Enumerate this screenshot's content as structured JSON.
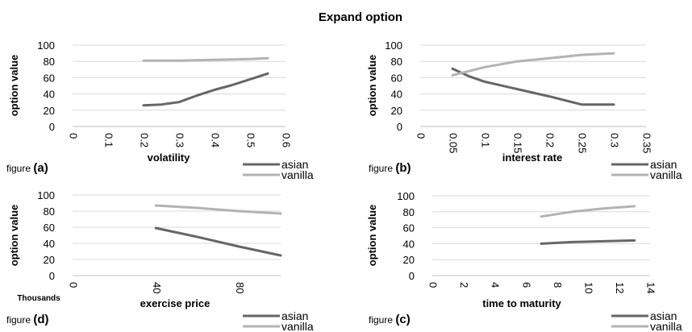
{
  "chart_data": [
    {
      "type": "line",
      "title": "Expand option",
      "panel_label": "figure",
      "panel_id": "(a)",
      "xlabel": "volatility",
      "ylabel": "option value",
      "xlim": [
        0,
        0.6
      ],
      "ylim": [
        0,
        100
      ],
      "x_ticks": [
        "0",
        "0.1",
        "0.2",
        "0.3",
        "0.4",
        "0.5",
        "0.6"
      ],
      "y_ticks": [
        "0",
        "20",
        "40",
        "60",
        "80",
        "100"
      ],
      "grid": true,
      "legend_position": "bottom-right",
      "series": [
        {
          "name": "asian",
          "color": "#666666",
          "x": [
            0.2,
            0.25,
            0.3,
            0.35,
            0.4,
            0.45,
            0.5,
            0.55
          ],
          "y": [
            26,
            27,
            30,
            38,
            45,
            51,
            58,
            65
          ]
        },
        {
          "name": "vanilla",
          "color": "#b3b3b3",
          "x": [
            0.2,
            0.3,
            0.4,
            0.5,
            0.55
          ],
          "y": [
            81,
            81,
            82,
            83,
            84
          ]
        }
      ]
    },
    {
      "type": "line",
      "panel_label": "figure",
      "panel_id": "(b)",
      "xlabel": "interest rate",
      "ylabel": "option value",
      "xlim": [
        0,
        0.35
      ],
      "ylim": [
        0,
        100
      ],
      "x_ticks": [
        "0",
        "0.05",
        "0.1",
        "0.15",
        "0.2",
        "0.25",
        "0.3",
        "0.35"
      ],
      "y_ticks": [
        "0",
        "20",
        "40",
        "60",
        "80",
        "100"
      ],
      "grid": true,
      "legend_position": "bottom-right",
      "series": [
        {
          "name": "asian",
          "color": "#666666",
          "x": [
            0.05,
            0.075,
            0.1,
            0.15,
            0.2,
            0.25,
            0.3
          ],
          "y": [
            71,
            62,
            55,
            46,
            37,
            27,
            27
          ]
        },
        {
          "name": "vanilla",
          "color": "#b3b3b3",
          "x": [
            0.05,
            0.1,
            0.15,
            0.2,
            0.25,
            0.3
          ],
          "y": [
            63,
            73,
            80,
            84,
            88,
            90
          ]
        }
      ]
    },
    {
      "type": "line",
      "panel_label": "figure",
      "panel_id": "(d)",
      "xlabel": "exercise price",
      "x_unit_label": "Thousands",
      "ylabel": "option value",
      "xlim": [
        0,
        100
      ],
      "ylim": [
        0,
        100
      ],
      "x_ticks": [
        "0",
        "40",
        "80"
      ],
      "y_ticks": [
        "0",
        "20",
        "40",
        "60",
        "80",
        "100"
      ],
      "grid": true,
      "legend_position": "bottom-right",
      "series": [
        {
          "name": "asian",
          "color": "#666666",
          "x": [
            40,
            60,
            80,
            100
          ],
          "y": [
            59,
            48,
            36,
            25
          ]
        },
        {
          "name": "vanilla",
          "color": "#b3b3b3",
          "x": [
            40,
            60,
            80,
            100
          ],
          "y": [
            87,
            84,
            80,
            77
          ]
        }
      ]
    },
    {
      "type": "line",
      "panel_label": "figure",
      "panel_id": "(c)",
      "xlabel": "time to maturity",
      "ylabel": "option value",
      "xlim": [
        0,
        14
      ],
      "ylim": [
        0,
        100
      ],
      "x_ticks": [
        "0",
        "2",
        "4",
        "6",
        "8",
        "10",
        "12",
        "14"
      ],
      "y_ticks": [
        "0",
        "20",
        "40",
        "60",
        "80",
        "100"
      ],
      "grid": true,
      "legend_position": "bottom-right",
      "series": [
        {
          "name": "asian",
          "color": "#666666",
          "x": [
            7,
            9,
            11,
            13
          ],
          "y": [
            40,
            42,
            43,
            44
          ]
        },
        {
          "name": "vanilla",
          "color": "#b3b3b3",
          "x": [
            7,
            9,
            11,
            13
          ],
          "y": [
            74,
            80,
            84,
            87
          ]
        }
      ]
    }
  ]
}
